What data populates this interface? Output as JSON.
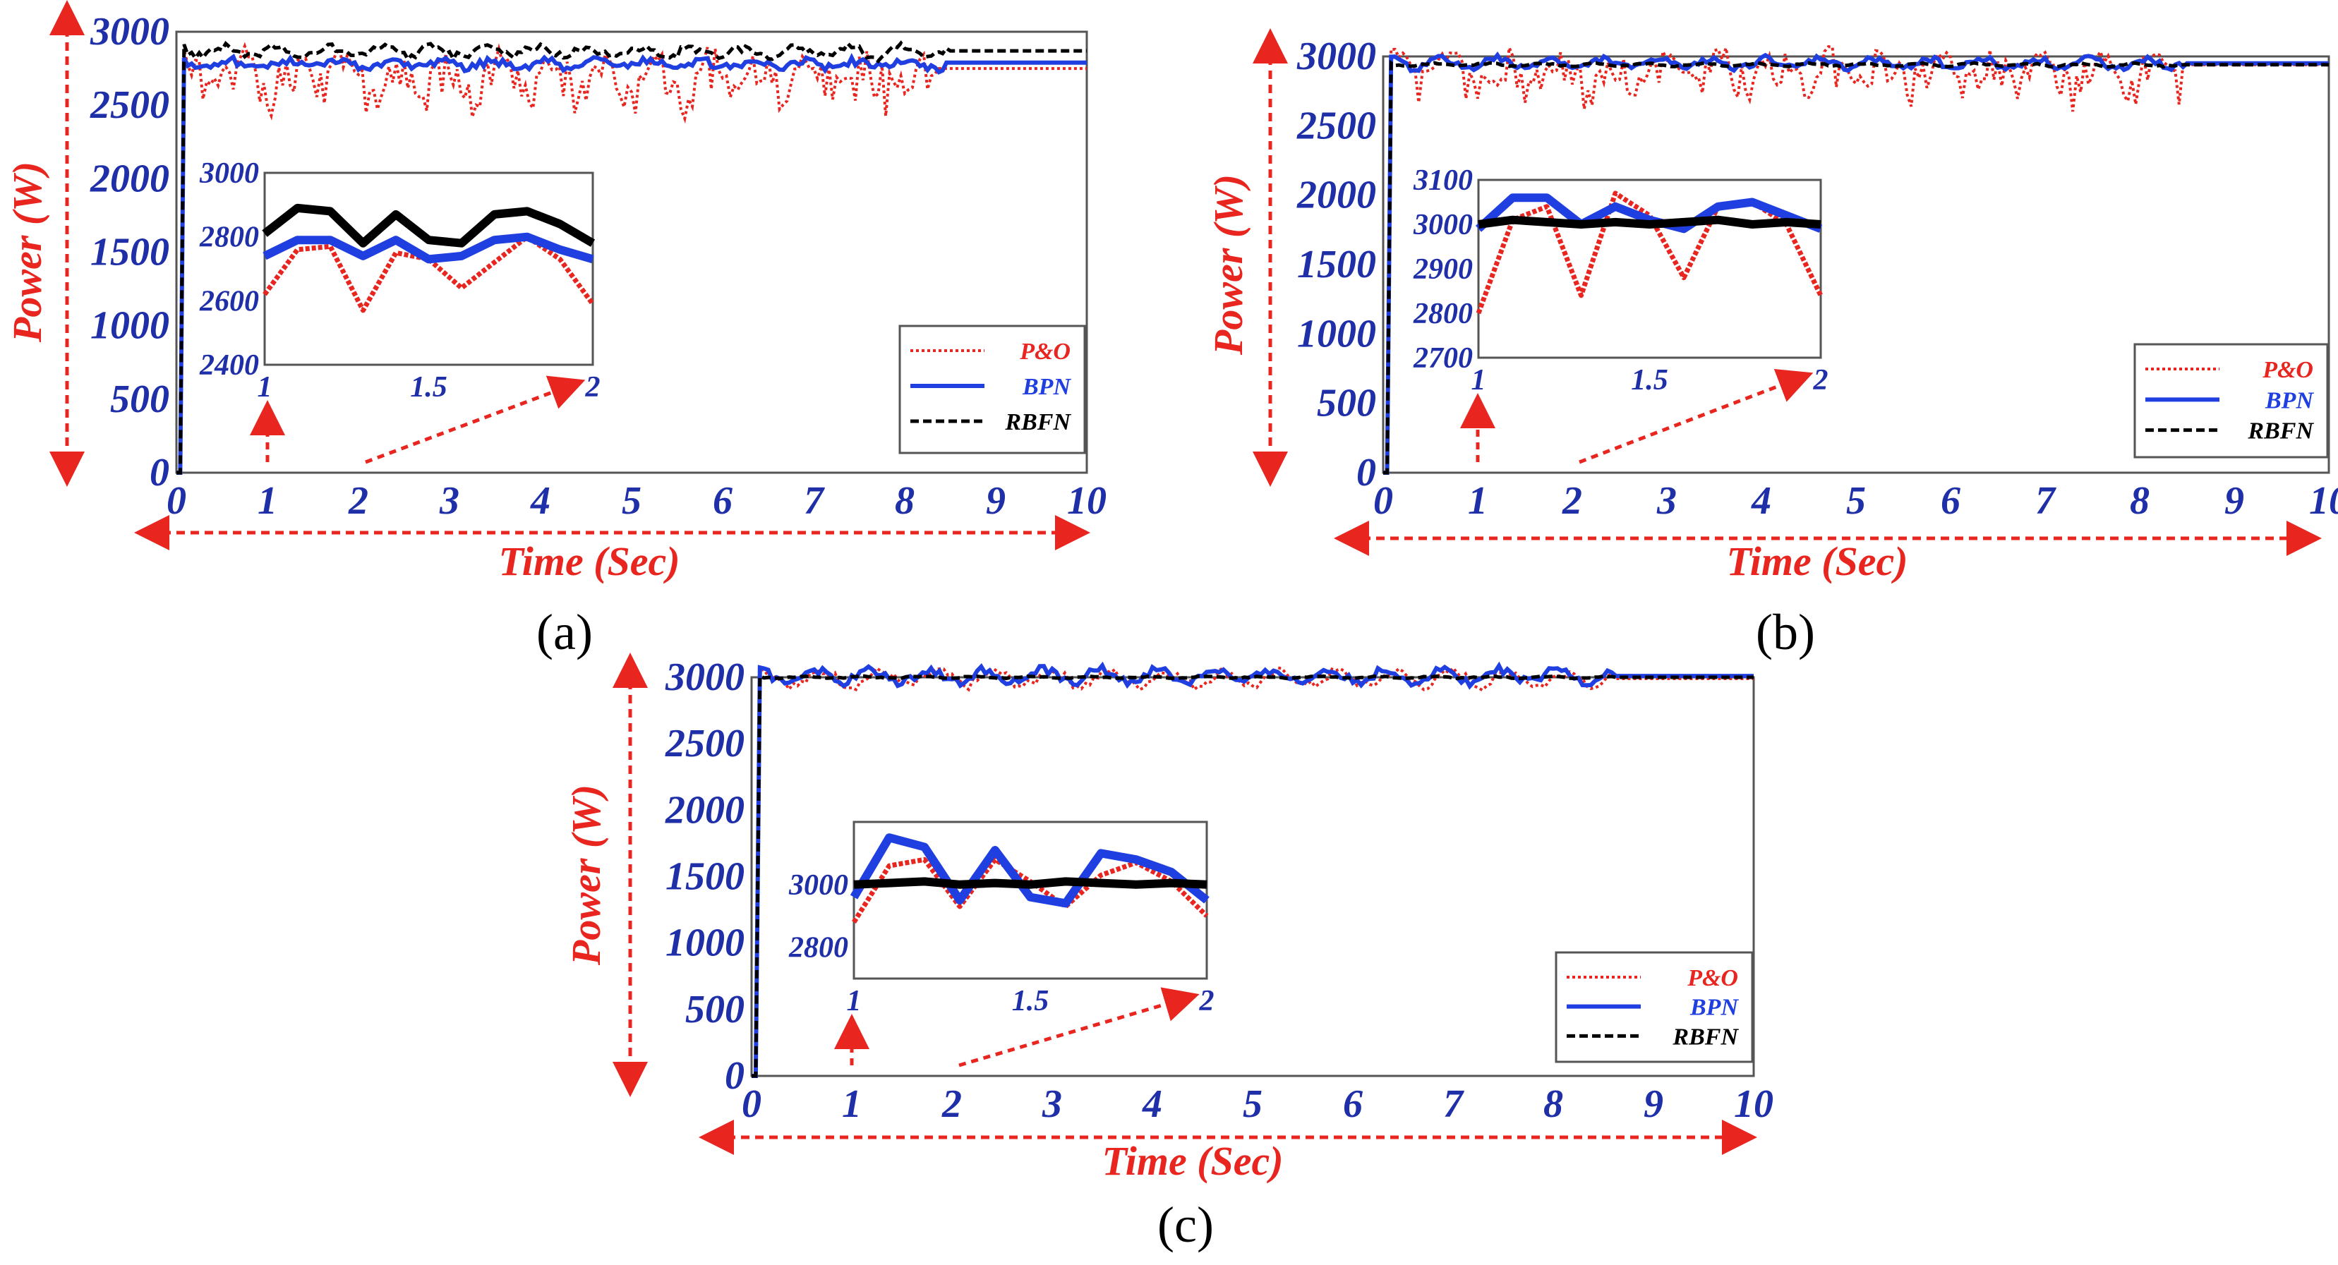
{
  "figure": {
    "panel_labels": [
      "(a)",
      "(b)",
      "(c)"
    ]
  },
  "colors": {
    "po": "#e8251f",
    "bpn": "#1f3fe0",
    "rbfn": "#000000",
    "tick": "#1f2fa8",
    "title": "#e8251f",
    "arrow": "#e8251f"
  },
  "chart_data": [
    {
      "type": "line",
      "panel": "(a)",
      "xlabel": "Time (Sec)",
      "ylabel": "Power (W)",
      "xlim": [
        0,
        10
      ],
      "ylim": [
        0,
        3000
      ],
      "x_ticks": [
        "0",
        "1",
        "2",
        "3",
        "4",
        "5",
        "6",
        "7",
        "8",
        "9",
        "10"
      ],
      "y_ticks": [
        "0",
        "500",
        "1000",
        "1500",
        "2000",
        "2500",
        "3000"
      ],
      "legend": [
        "P&O",
        "BPN",
        "RBFN"
      ],
      "series": [
        {
          "name": "P&O",
          "style": "dotted",
          "steady": 2750,
          "amp": 160,
          "dips": 220,
          "settle": 8.35
        },
        {
          "name": "BPN",
          "style": "solid",
          "steady": 2790,
          "amp": 40,
          "dips": 30,
          "settle": 8.45
        },
        {
          "name": "RBFN",
          "style": "dashed",
          "steady": 2870,
          "amp": 55,
          "dips": 20,
          "settle": 8.5
        }
      ],
      "inset": {
        "xlim": [
          1,
          2
        ],
        "ylim": [
          2400,
          3000
        ],
        "x_ticks": [
          "1",
          "1.5",
          "2"
        ],
        "y_ticks": [
          "2400",
          "2600",
          "2800",
          "3000"
        ],
        "x": [
          1.0,
          1.1,
          1.2,
          1.3,
          1.4,
          1.5,
          1.6,
          1.7,
          1.8,
          1.9,
          2.0
        ],
        "series": [
          {
            "name": "P&O",
            "values": [
              2620,
              2760,
              2770,
              2570,
              2750,
              2730,
              2640,
              2720,
              2800,
              2730,
              2590
            ]
          },
          {
            "name": "BPN",
            "values": [
              2740,
              2790,
              2790,
              2740,
              2790,
              2730,
              2740,
              2790,
              2800,
              2760,
              2730
            ]
          },
          {
            "name": "RBFN",
            "values": [
              2810,
              2890,
              2880,
              2780,
              2870,
              2790,
              2780,
              2870,
              2880,
              2840,
              2780
            ]
          }
        ],
        "zoom_from": "1",
        "zoom_to": "2"
      }
    },
    {
      "type": "line",
      "panel": "(b)",
      "xlabel": "Time (Sec)",
      "ylabel": "Power (W)",
      "xlim": [
        0,
        10
      ],
      "ylim": [
        0,
        3000
      ],
      "x_ticks": [
        "0",
        "1",
        "2",
        "3",
        "4",
        "5",
        "6",
        "7",
        "8",
        "9",
        "10"
      ],
      "y_ticks": [
        "0",
        "500",
        "1000",
        "1500",
        "2000",
        "2500",
        "3000"
      ],
      "legend": [
        "P&O",
        "BPN",
        "RBFN"
      ],
      "series": [
        {
          "name": "P&O",
          "style": "dotted",
          "steady": 2940,
          "amp": 140,
          "dips": 220,
          "settle": 8.45
        },
        {
          "name": "BPN",
          "style": "solid",
          "steady": 2950,
          "amp": 60,
          "dips": 0,
          "settle": 8.5
        },
        {
          "name": "RBFN",
          "style": "dashed",
          "steady": 2940,
          "amp": 15,
          "dips": 0,
          "settle": 8.5
        }
      ],
      "inset": {
        "xlim": [
          1,
          2
        ],
        "ylim": [
          2700,
          3100
        ],
        "x_ticks": [
          "1",
          "1.5",
          "2"
        ],
        "y_ticks": [
          "2700",
          "2800",
          "2900",
          "3000",
          "3100"
        ],
        "x": [
          1.0,
          1.1,
          1.2,
          1.3,
          1.4,
          1.5,
          1.6,
          1.7,
          1.8,
          1.9,
          2.0
        ],
        "series": [
          {
            "name": "P&O",
            "values": [
              2800,
              3010,
              3040,
              2840,
              3070,
              3020,
              2880,
              3040,
              3050,
              3000,
              2840
            ]
          },
          {
            "name": "BPN",
            "values": [
              2990,
              3060,
              3060,
              3000,
              3040,
              3010,
              2990,
              3040,
              3050,
              3020,
              2990
            ]
          },
          {
            "name": "RBFN",
            "values": [
              3000,
              3010,
              3005,
              3000,
              3005,
              3000,
              3005,
              3010,
              3000,
              3005,
              3000
            ]
          }
        ],
        "zoom_from": "1",
        "zoom_to": "2"
      }
    },
    {
      "type": "line",
      "panel": "(c)",
      "xlabel": "Time (Sec)",
      "ylabel": "Power (W)",
      "xlim": [
        0,
        10
      ],
      "ylim": [
        0,
        3000
      ],
      "x_ticks": [
        "0",
        "1",
        "2",
        "3",
        "4",
        "5",
        "6",
        "7",
        "8",
        "9",
        "10"
      ],
      "y_ticks": [
        "0",
        "500",
        "1000",
        "1500",
        "2000",
        "2500",
        "3000"
      ],
      "legend": [
        "P&O",
        "BPN",
        "RBFN"
      ],
      "series": [
        {
          "name": "P&O",
          "style": "dotted",
          "steady": 2990,
          "amp": 90,
          "dips": 0,
          "settle": 8.6
        },
        {
          "name": "BPN",
          "style": "solid",
          "steady": 3010,
          "amp": 80,
          "dips": 0,
          "settle": 8.6
        },
        {
          "name": "RBFN",
          "style": "dashed",
          "steady": 3000,
          "amp": 10,
          "dips": 0,
          "settle": 8.6
        }
      ],
      "inset": {
        "xlim": [
          1,
          2
        ],
        "ylim": [
          2700,
          3200
        ],
        "x_ticks": [
          "1",
          "1.5",
          "2"
        ],
        "y_ticks": [
          "2800",
          "3000"
        ],
        "x": [
          1.0,
          1.1,
          1.2,
          1.3,
          1.4,
          1.5,
          1.6,
          1.7,
          1.8,
          1.9,
          2.0
        ],
        "series": [
          {
            "name": "P&O",
            "values": [
              2880,
              3060,
              3080,
              2930,
              3080,
              3010,
              2930,
              3030,
              3070,
              3010,
              2900
            ]
          },
          {
            "name": "BPN",
            "values": [
              2960,
              3150,
              3120,
              2950,
              3110,
              2960,
              2940,
              3100,
              3080,
              3040,
              2950
            ]
          },
          {
            "name": "RBFN",
            "values": [
              3000,
              3005,
              3010,
              3000,
              3005,
              3000,
              3010,
              3005,
              3000,
              3005,
              3000
            ]
          }
        ],
        "zoom_from": "1",
        "zoom_to": "2"
      }
    }
  ]
}
